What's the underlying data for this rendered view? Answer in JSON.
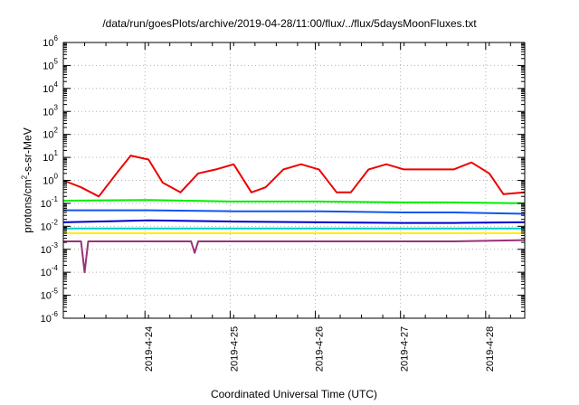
{
  "chart_data": {
    "type": "line",
    "title": "/data/run/goesPlots/archive/2019-04-28/11:00/flux/../flux/5daysMoonFluxes.txt",
    "xlabel": "Coordinated Universal Time (UTC)",
    "ylabel_parts": [
      "protons/cm",
      "2",
      "-s-sr-MeV"
    ],
    "y_scale": "log",
    "ylim": [
      1e-06,
      1000000.0
    ],
    "xlim": [
      "2019-04-23 01:00",
      "2019-04-28 11:00"
    ],
    "x_ticks": [
      "2019-4-24",
      "2019-4-25",
      "2019-4-26",
      "2019-4-27",
      "2019-4-28"
    ],
    "y_ticks": [
      {
        "base": "10",
        "exp": "-6"
      },
      {
        "base": "10",
        "exp": "-5"
      },
      {
        "base": "10",
        "exp": "-4"
      },
      {
        "base": "10",
        "exp": "-3"
      },
      {
        "base": "10",
        "exp": "-2"
      },
      {
        "base": "10",
        "exp": "-1"
      },
      {
        "base": "10",
        "exp": "0"
      },
      {
        "base": "10",
        "exp": "1"
      },
      {
        "base": "10",
        "exp": "2"
      },
      {
        "base": "10",
        "exp": "3"
      },
      {
        "base": "10",
        "exp": "4"
      },
      {
        "base": "10",
        "exp": "5"
      },
      {
        "base": "10",
        "exp": "6"
      }
    ],
    "grid": true,
    "series": [
      {
        "color": "#ee0000",
        "x": [
          "2019-04-23 01:00",
          "2019-04-23 06:00",
          "2019-04-23 11:00",
          "2019-04-23 16:00",
          "2019-04-23 20:00",
          "2019-04-24 01:00",
          "2019-04-24 05:00",
          "2019-04-24 10:00",
          "2019-04-24 15:00",
          "2019-04-24 20:00",
          "2019-04-25 01:00",
          "2019-04-25 06:00",
          "2019-04-25 10:00",
          "2019-04-25 15:00",
          "2019-04-25 20:00",
          "2019-04-26 01:00",
          "2019-04-26 06:00",
          "2019-04-26 10:00",
          "2019-04-26 15:00",
          "2019-04-26 20:00",
          "2019-04-27 01:00",
          "2019-04-27 06:00",
          "2019-04-27 11:00",
          "2019-04-27 15:00",
          "2019-04-27 20:00",
          "2019-04-28 01:00",
          "2019-04-28 05:00",
          "2019-04-28 11:00"
        ],
        "y": [
          1.0,
          0.5,
          0.2,
          2.0,
          12,
          8,
          0.8,
          0.3,
          2.0,
          3.0,
          5.0,
          0.3,
          0.5,
          3.0,
          5.0,
          3.0,
          0.3,
          0.3,
          3.0,
          5.0,
          3.0,
          3.0,
          3.0,
          3.0,
          6.0,
          2.0,
          0.25,
          0.3
        ]
      },
      {
        "color": "#00ee00",
        "x": [
          "2019-04-23 01:00",
          "2019-04-24 01:00",
          "2019-04-25 01:00",
          "2019-04-26 01:00",
          "2019-04-27 01:00",
          "2019-04-27 15:00",
          "2019-04-28 11:00"
        ],
        "y": [
          0.13,
          0.14,
          0.12,
          0.12,
          0.11,
          0.11,
          0.1
        ]
      },
      {
        "color": "#1155ee",
        "x": [
          "2019-04-23 01:00",
          "2019-04-24 01:00",
          "2019-04-25 01:00",
          "2019-04-26 01:00",
          "2019-04-27 01:00",
          "2019-04-27 15:00",
          "2019-04-28 11:00"
        ],
        "y": [
          0.05,
          0.05,
          0.045,
          0.045,
          0.04,
          0.04,
          0.035
        ]
      },
      {
        "color": "#0000cc",
        "x": [
          "2019-04-23 01:00",
          "2019-04-24 01:00",
          "2019-04-25 01:00",
          "2019-04-26 01:00",
          "2019-04-27 01:00",
          "2019-04-27 15:00",
          "2019-04-28 11:00"
        ],
        "y": [
          0.015,
          0.018,
          0.016,
          0.015,
          0.014,
          0.014,
          0.015
        ]
      },
      {
        "color": "#00cccc",
        "x": [
          "2019-04-23 01:00",
          "2019-04-24 01:00",
          "2019-04-25 01:00",
          "2019-04-26 01:00",
          "2019-04-27 01:00",
          "2019-04-27 15:00",
          "2019-04-28 11:00"
        ],
        "y": [
          0.008,
          0.008,
          0.008,
          0.008,
          0.008,
          0.008,
          0.008
        ]
      },
      {
        "color": "#ffee00",
        "x": [
          "2019-04-23 01:00",
          "2019-04-24 01:00",
          "2019-04-25 01:00",
          "2019-04-26 01:00",
          "2019-04-27 01:00",
          "2019-04-27 15:00",
          "2019-04-28 11:00"
        ],
        "y": [
          0.005,
          0.005,
          0.005,
          0.005,
          0.005,
          0.005,
          0.005
        ]
      },
      {
        "color": "#993377",
        "x": [
          "2019-04-23 01:00",
          "2019-04-23 06:00",
          "2019-04-23 07:00",
          "2019-04-23 08:00",
          "2019-04-24 01:00",
          "2019-04-24 13:00",
          "2019-04-24 14:00",
          "2019-04-24 15:00",
          "2019-04-25 01:00",
          "2019-04-26 01:00",
          "2019-04-27 01:00",
          "2019-04-27 15:00",
          "2019-04-28 11:00"
        ],
        "y": [
          0.0022,
          0.0022,
          0.0001,
          0.0022,
          0.0022,
          0.0022,
          0.0007,
          0.0022,
          0.0022,
          0.0022,
          0.0022,
          0.0022,
          0.0025
        ]
      }
    ]
  }
}
